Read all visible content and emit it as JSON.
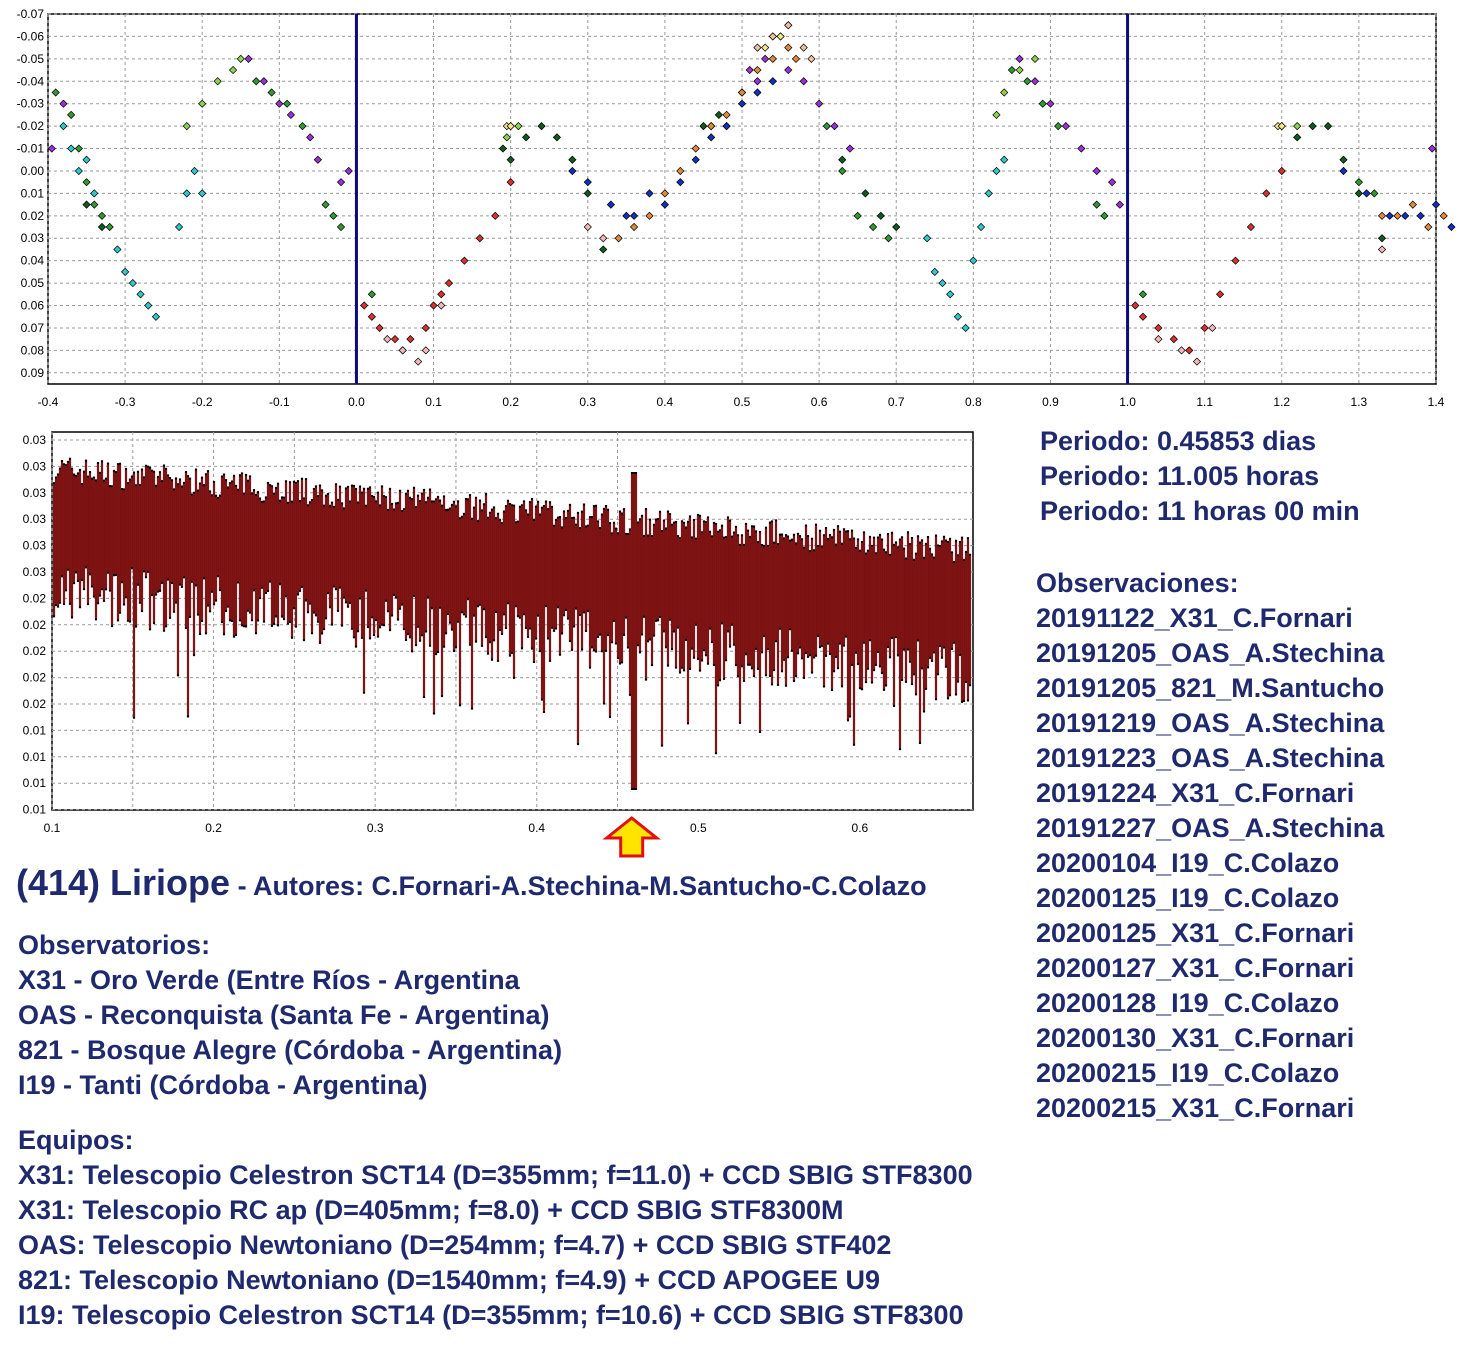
{
  "chart_data": [
    {
      "type": "scatter",
      "title": "",
      "xlabel": "",
      "ylabel": "",
      "xlim": [
        -0.4,
        1.4
      ],
      "ylim": [
        -0.07,
        0.095
      ],
      "y_inverted": true,
      "grid": true,
      "x_ticks": [
        "-0.4",
        "-0.3",
        "-0.2",
        "-0.1",
        "0.0",
        "0.1",
        "0.2",
        "0.3",
        "0.4",
        "0.5",
        "0.6",
        "0.7",
        "0.8",
        "0.9",
        "1.0",
        "1.1",
        "1.2",
        "1.3",
        "1.4"
      ],
      "y_ticks": [
        "-0.07",
        "-0.06",
        "-0.05",
        "-0.04",
        "-0.03",
        "-0.02",
        "-0.01",
        "0.00",
        "0.01",
        "0.02",
        "0.03",
        "0.04",
        "0.05",
        "0.06",
        "0.07",
        "0.08",
        "0.09"
      ],
      "vertical_lines": [
        0.0,
        1.0
      ],
      "vertical_line_color": "#0b0b7a",
      "marker": "diamond",
      "series": [
        {
          "color": "#9b30d9",
          "values": [
            [
              -0.395,
              -0.01
            ],
            [
              -0.38,
              -0.03
            ],
            [
              -0.14,
              -0.05
            ],
            [
              -0.12,
              -0.04
            ],
            [
              -0.1,
              -0.03
            ],
            [
              -0.085,
              -0.025
            ],
            [
              -0.06,
              -0.015
            ],
            [
              -0.05,
              -0.005
            ],
            [
              -0.02,
              0.005
            ],
            [
              -0.01,
              0.0
            ],
            [
              0.5,
              -0.035
            ],
            [
              0.51,
              -0.045
            ],
            [
              0.52,
              -0.04
            ],
            [
              0.53,
              -0.05
            ],
            [
              0.56,
              -0.045
            ],
            [
              0.58,
              -0.04
            ],
            [
              0.6,
              -0.03
            ],
            [
              0.62,
              -0.02
            ],
            [
              0.64,
              -0.01
            ],
            [
              0.86,
              -0.05
            ],
            [
              0.88,
              -0.04
            ],
            [
              0.9,
              -0.03
            ],
            [
              0.92,
              -0.02
            ],
            [
              0.94,
              -0.01
            ],
            [
              0.96,
              0.0
            ],
            [
              0.98,
              0.005
            ],
            [
              0.99,
              0.015
            ],
            [
              1.395,
              -0.01
            ]
          ]
        },
        {
          "color": "#2f9a2f",
          "values": [
            [
              -0.39,
              -0.035
            ],
            [
              -0.37,
              -0.025
            ],
            [
              -0.36,
              -0.01
            ],
            [
              -0.35,
              0.005
            ],
            [
              -0.34,
              0.015
            ],
            [
              -0.33,
              0.02
            ],
            [
              -0.32,
              0.025
            ],
            [
              -0.13,
              -0.04
            ],
            [
              -0.11,
              -0.035
            ],
            [
              -0.09,
              -0.03
            ],
            [
              -0.07,
              -0.02
            ],
            [
              -0.04,
              0.015
            ],
            [
              -0.03,
              0.02
            ],
            [
              -0.02,
              0.025
            ],
            [
              0.02,
              0.055
            ],
            [
              0.61,
              -0.02
            ],
            [
              0.63,
              0.0
            ],
            [
              0.65,
              0.02
            ],
            [
              0.67,
              0.025
            ],
            [
              0.69,
              0.03
            ],
            [
              0.85,
              -0.045
            ],
            [
              0.87,
              -0.04
            ],
            [
              0.89,
              -0.03
            ],
            [
              0.91,
              -0.02
            ],
            [
              0.96,
              0.015
            ],
            [
              0.97,
              0.02
            ],
            [
              1.02,
              0.055
            ],
            [
              1.3,
              0.005
            ],
            [
              1.32,
              0.01
            ]
          ]
        },
        {
          "color": "#30c8c8",
          "values": [
            [
              -0.38,
              -0.02
            ],
            [
              -0.37,
              -0.01
            ],
            [
              -0.36,
              0.0
            ],
            [
              -0.35,
              -0.005
            ],
            [
              -0.34,
              0.01
            ],
            [
              -0.31,
              0.035
            ],
            [
              -0.3,
              0.045
            ],
            [
              -0.29,
              0.05
            ],
            [
              -0.28,
              0.055
            ],
            [
              -0.27,
              0.06
            ],
            [
              -0.26,
              0.065
            ],
            [
              -0.23,
              0.025
            ],
            [
              -0.22,
              0.01
            ],
            [
              -0.21,
              0.0
            ],
            [
              -0.2,
              0.01
            ],
            [
              0.74,
              0.03
            ],
            [
              0.75,
              0.045
            ],
            [
              0.76,
              0.05
            ],
            [
              0.77,
              0.055
            ],
            [
              0.78,
              0.065
            ],
            [
              0.79,
              0.07
            ],
            [
              0.8,
              0.04
            ],
            [
              0.81,
              0.025
            ],
            [
              0.82,
              0.01
            ],
            [
              0.83,
              0.0
            ],
            [
              0.84,
              -0.005
            ]
          ]
        },
        {
          "color": "#8fd14f",
          "values": [
            [
              -0.22,
              -0.02
            ],
            [
              -0.2,
              -0.03
            ],
            [
              -0.18,
              -0.04
            ],
            [
              -0.16,
              -0.045
            ],
            [
              -0.15,
              -0.05
            ],
            [
              0.83,
              -0.025
            ],
            [
              0.84,
              -0.035
            ],
            [
              0.86,
              -0.045
            ],
            [
              0.88,
              -0.05
            ],
            [
              0.195,
              -0.015
            ],
            [
              0.2,
              -0.02
            ],
            [
              0.21,
              -0.02
            ],
            [
              1.2,
              -0.02
            ],
            [
              1.22,
              -0.02
            ]
          ]
        },
        {
          "color": "#0f5a1e",
          "values": [
            [
              -0.35,
              0.015
            ],
            [
              -0.33,
              0.025
            ],
            [
              0.19,
              -0.01
            ],
            [
              0.2,
              -0.005
            ],
            [
              0.22,
              -0.015
            ],
            [
              0.24,
              -0.02
            ],
            [
              0.26,
              -0.015
            ],
            [
              0.28,
              -0.005
            ],
            [
              0.3,
              0.01
            ],
            [
              0.32,
              0.035
            ],
            [
              0.45,
              -0.02
            ],
            [
              0.46,
              -0.02
            ],
            [
              0.47,
              -0.025
            ],
            [
              0.48,
              -0.02
            ],
            [
              0.63,
              -0.005
            ],
            [
              0.66,
              0.01
            ],
            [
              0.68,
              0.02
            ],
            [
              0.7,
              0.025
            ],
            [
              1.22,
              -0.015
            ],
            [
              1.24,
              -0.02
            ],
            [
              1.26,
              -0.02
            ],
            [
              1.28,
              -0.005
            ],
            [
              1.3,
              0.01
            ],
            [
              1.33,
              0.03
            ]
          ]
        },
        {
          "color": "#d93030",
          "values": [
            [
              0.01,
              0.06
            ],
            [
              0.02,
              0.065
            ],
            [
              0.03,
              0.07
            ],
            [
              0.05,
              0.075
            ],
            [
              0.06,
              0.08
            ],
            [
              0.07,
              0.075
            ],
            [
              0.09,
              0.07
            ],
            [
              0.1,
              0.06
            ],
            [
              0.11,
              0.055
            ],
            [
              0.12,
              0.05
            ],
            [
              0.14,
              0.04
            ],
            [
              0.16,
              0.03
            ],
            [
              0.18,
              0.02
            ],
            [
              0.2,
              0.005
            ],
            [
              1.01,
              0.06
            ],
            [
              1.02,
              0.065
            ],
            [
              1.04,
              0.07
            ],
            [
              1.06,
              0.075
            ],
            [
              1.08,
              0.08
            ],
            [
              1.1,
              0.07
            ],
            [
              1.12,
              0.055
            ],
            [
              1.14,
              0.04
            ],
            [
              1.16,
              0.025
            ],
            [
              1.18,
              0.01
            ],
            [
              1.2,
              0.0
            ]
          ]
        },
        {
          "color": "#f4b8b8",
          "values": [
            [
              0.04,
              0.075
            ],
            [
              0.06,
              0.08
            ],
            [
              0.08,
              0.085
            ],
            [
              0.09,
              0.08
            ],
            [
              0.11,
              0.06
            ],
            [
              1.04,
              0.075
            ],
            [
              1.07,
              0.08
            ],
            [
              1.09,
              0.085
            ],
            [
              1.11,
              0.07
            ],
            [
              0.3,
              0.025
            ],
            [
              0.32,
              0.03
            ],
            [
              1.33,
              0.035
            ]
          ]
        },
        {
          "color": "#1030c0",
          "values": [
            [
              0.28,
              0.0
            ],
            [
              0.3,
              0.005
            ],
            [
              0.33,
              0.015
            ],
            [
              0.35,
              0.02
            ],
            [
              0.36,
              0.02
            ],
            [
              0.38,
              0.01
            ],
            [
              0.4,
              0.015
            ],
            [
              0.42,
              0.005
            ],
            [
              0.44,
              -0.005
            ],
            [
              0.46,
              -0.015
            ],
            [
              0.48,
              -0.02
            ],
            [
              0.5,
              -0.03
            ],
            [
              0.52,
              -0.035
            ],
            [
              0.54,
              -0.04
            ],
            [
              1.28,
              0.0
            ],
            [
              1.31,
              0.01
            ],
            [
              1.34,
              0.02
            ],
            [
              1.36,
              0.02
            ],
            [
              1.38,
              0.02
            ],
            [
              1.4,
              0.015
            ],
            [
              1.42,
              0.025
            ]
          ]
        },
        {
          "color": "#e08a3a",
          "values": [
            [
              0.34,
              0.03
            ],
            [
              0.36,
              0.025
            ],
            [
              0.38,
              0.02
            ],
            [
              0.4,
              0.01
            ],
            [
              0.42,
              0.0
            ],
            [
              0.44,
              -0.01
            ],
            [
              0.46,
              -0.02
            ],
            [
              0.48,
              -0.025
            ],
            [
              0.5,
              -0.035
            ],
            [
              0.52,
              -0.045
            ],
            [
              0.54,
              -0.05
            ],
            [
              0.55,
              -0.06
            ],
            [
              0.56,
              -0.055
            ],
            [
              0.57,
              -0.05
            ],
            [
              1.33,
              0.02
            ],
            [
              1.35,
              0.02
            ],
            [
              1.37,
              0.015
            ],
            [
              1.39,
              0.025
            ],
            [
              1.41,
              0.02
            ]
          ]
        },
        {
          "color": "#f2e88a",
          "values": [
            [
              0.195,
              -0.02
            ],
            [
              0.2,
              -0.02
            ],
            [
              0.53,
              -0.055
            ],
            [
              0.54,
              -0.06
            ],
            [
              0.55,
              -0.06
            ],
            [
              0.56,
              -0.065
            ],
            [
              1.195,
              -0.02
            ],
            [
              1.2,
              -0.02
            ]
          ]
        },
        {
          "color": "#f0c0a0",
          "values": [
            [
              0.52,
              -0.055
            ],
            [
              0.54,
              -0.06
            ],
            [
              0.56,
              -0.065
            ],
            [
              0.58,
              -0.055
            ],
            [
              0.59,
              -0.05
            ]
          ]
        }
      ]
    },
    {
      "type": "line",
      "title": "",
      "xlabel": "",
      "ylabel": "",
      "xlim": [
        0.1,
        0.67
      ],
      "grid": true,
      "x_ticks": [
        "0.1",
        "0.2",
        "0.3",
        "0.4",
        "0.5",
        "0.6"
      ],
      "y_ticks": [
        "0.03",
        "0.03",
        "0.03",
        "0.03",
        "0.03",
        "0.03",
        "0.02",
        "0.02",
        "0.02",
        "0.02",
        "0.02",
        "0.01",
        "0.01",
        "0.01",
        "0.01"
      ],
      "highlight_x": 0.46,
      "series_color": "#d42020",
      "arrow_color": "#ffe400",
      "arrow_border_color": "#e01010"
    }
  ],
  "info": {
    "period_days": "Periodo: 0.45853 dias",
    "period_hours": "Periodo: 11.005 horas",
    "period_hm": "Periodo: 11 horas 00 min"
  },
  "observations": {
    "heading": "Observaciones:",
    "items": [
      "20191122_X31_C.Fornari",
      "20191205_OAS_A.Stechina",
      "20191205_821_M.Santucho",
      "20191219_OAS_A.Stechina",
      "20191223_OAS_A.Stechina",
      "20191224_X31_C.Fornari",
      "20191227_OAS_A.Stechina",
      "20200104_I19_C.Colazo",
      "20200125_I19_C.Colazo",
      "20200125_X31_C.Fornari",
      "20200127_X31_C.Fornari",
      "20200128_I19_C.Colazo",
      "20200130_X31_C.Fornari",
      "20200215_I19_C.Colazo",
      "20200215_X31_C.Fornari"
    ]
  },
  "title": {
    "name": "(414) Liriope",
    "authors": " - Autores: C.Fornari-A.Stechina-M.Santucho-C.Colazo"
  },
  "observatories": {
    "heading": "Observatorios:",
    "items": [
      "X31 - Oro Verde (Entre Ríos - Argentina",
      "OAS - Reconquista (Santa Fe - Argentina)",
      "821 - Bosque Alegre (Córdoba - Argentina)",
      "I19 - Tanti (Córdoba - Argentina)"
    ]
  },
  "equipment": {
    "heading": "Equipos:",
    "items": [
      "X31: Telescopio Celestron SCT14 (D=355mm; f=11.0) + CCD SBIG STF8300",
      "X31: Telescopio RC ap (D=405mm; f=8.0) + CCD SBIG STF8300M",
      "OAS: Telescopio Newtoniano (D=254mm; f=4.7) + CCD SBIG STF402",
      "821: Telescopio Newtoniano (D=1540mm; f=4.9) + CCD APOGEE U9",
      "I19: Telescopio Celestron SCT14 (D=355mm; f=10.6) + CCD SBIG STF8300"
    ]
  },
  "colors": {
    "text": "#1f2a6e",
    "grid": "#9a9a9a",
    "frame": "#000000"
  }
}
